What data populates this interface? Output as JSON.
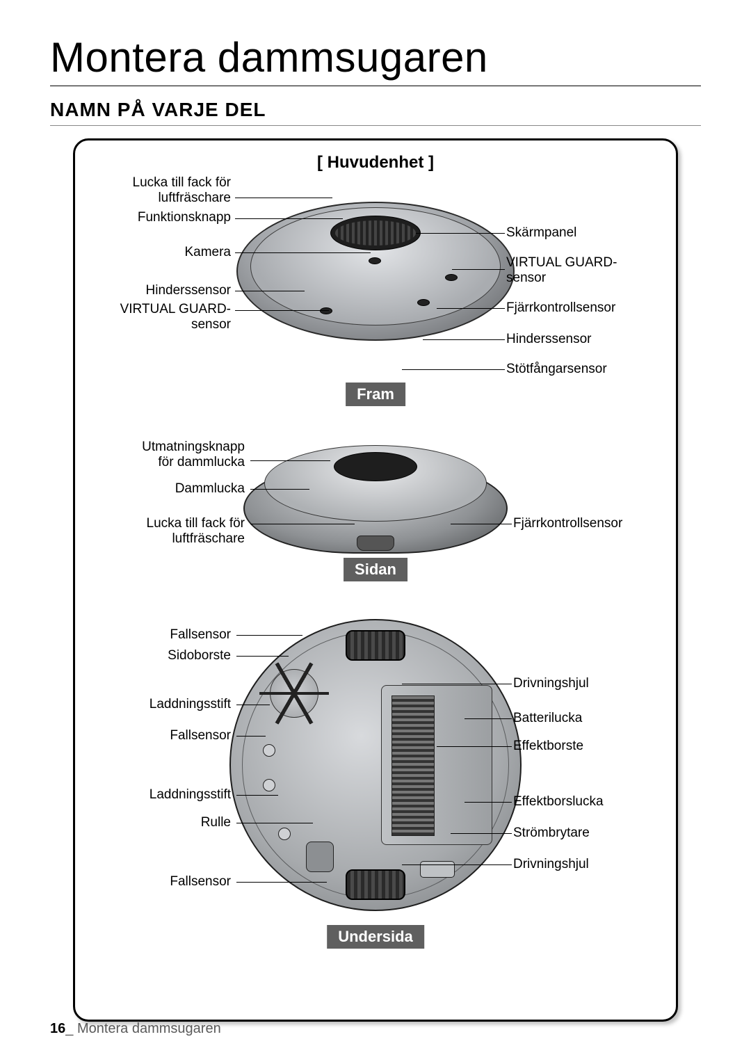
{
  "page": {
    "title": "Montera dammsugaren",
    "subtitle": "NAMN PÅ VARJE DEL",
    "footer_page": "16",
    "footer_text": "Montera dammsugaren"
  },
  "diagram": {
    "section_title": "[ Huvudenhet ]",
    "views": {
      "top": {
        "badge": "Fram",
        "left": [
          "Lucka till fack för\nluftfräschare",
          "Funktionsknapp",
          "Kamera",
          "Hinderssensor",
          "VIRTUAL GUARD-\nsensor"
        ],
        "right": [
          "Skärmpanel",
          "VIRTUAL GUARD-\nsensor",
          "Fjärrkontrollsensor",
          "Hinderssensor",
          "Stötfångarsensor"
        ]
      },
      "side": {
        "badge": "Sidan",
        "left": [
          "Utmatningsknapp\nför dammlucka",
          "Dammlucka",
          "Lucka till fack för\nluftfräschare"
        ],
        "right": [
          "Fjärrkontrollsensor"
        ]
      },
      "bottom": {
        "badge": "Undersida",
        "left": [
          "Fallsensor",
          "Sidoborste",
          "Laddningsstift",
          "Fallsensor",
          "Laddningsstift",
          "Rulle",
          "Fallsensor"
        ],
        "right": [
          "Drivningshjul",
          "Batterilucka",
          "Effektborste",
          "Effektborslucka",
          "Strömbrytare",
          "Drivningshjul"
        ]
      }
    }
  },
  "colors": {
    "badge_bg": "#5f5f5f",
    "badge_fg": "#ffffff",
    "device_light": "#d8dadd",
    "device_mid": "#a7aaad",
    "device_dark": "#5b5d60",
    "line": "#000000"
  }
}
